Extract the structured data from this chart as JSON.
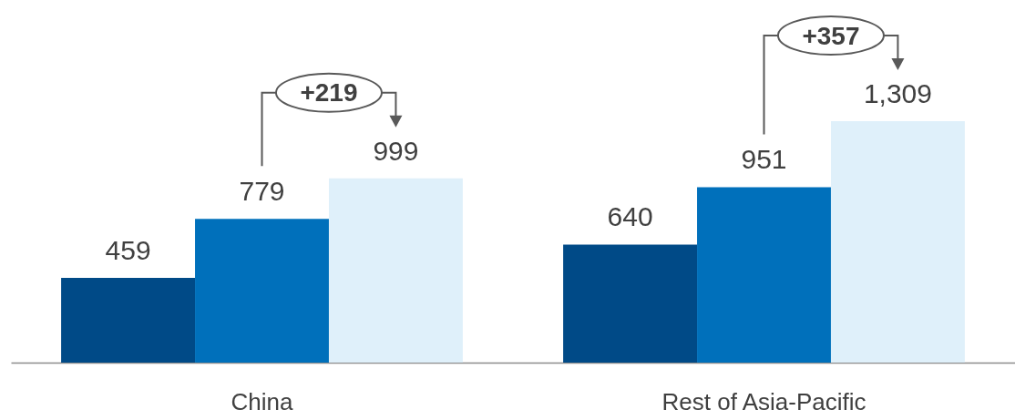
{
  "chart_data": {
    "type": "bar",
    "categories": [
      "China",
      "Rest of Asia-Pacific"
    ],
    "series": [
      {
        "color": "#004a87",
        "values": [
          459,
          640
        ],
        "value_labels": [
          "459",
          "640"
        ]
      },
      {
        "color": "#0070bb",
        "values": [
          779,
          951
        ],
        "value_labels": [
          "779",
          "951"
        ]
      },
      {
        "color": "#dff0fa",
        "values": [
          999,
          1309
        ],
        "value_labels": [
          "999",
          "1,309"
        ]
      }
    ],
    "tick_labels": "x",
    "grid": false,
    "legend": false,
    "annotations": [
      "+219",
      "+357"
    ]
  }
}
